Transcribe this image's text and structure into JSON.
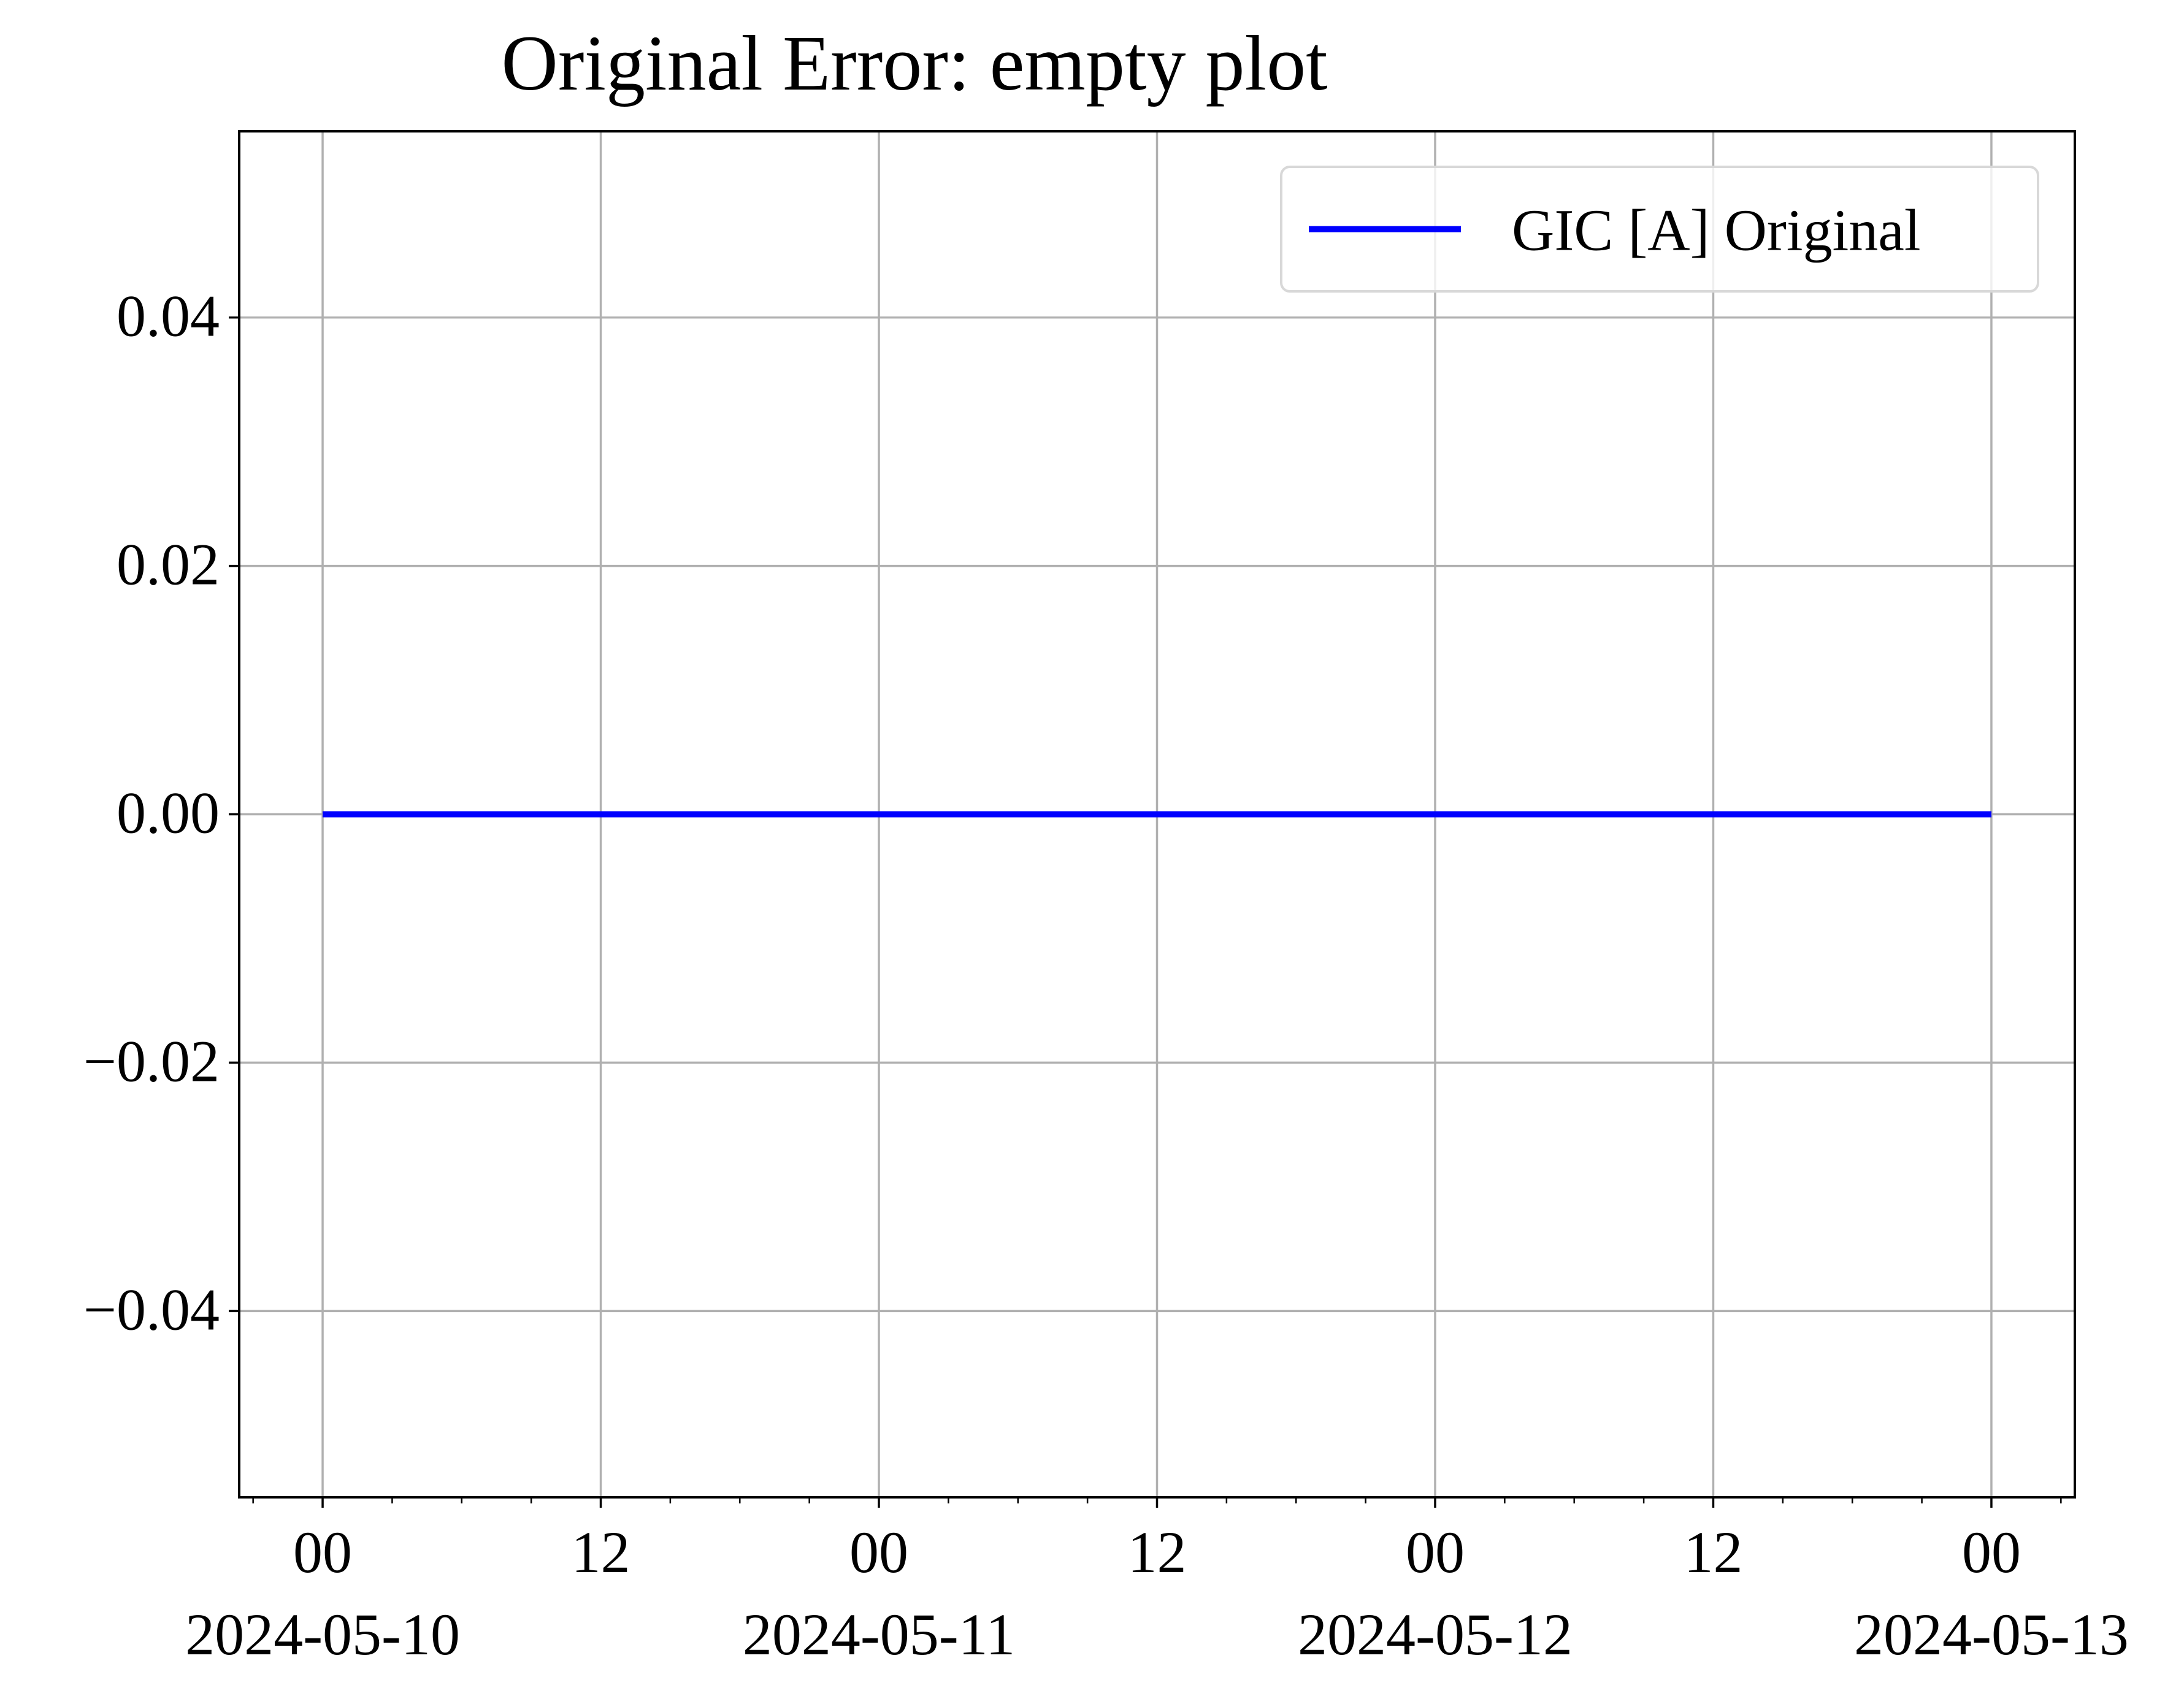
{
  "chart_data": {
    "type": "line",
    "title": "Original Error: empty plot",
    "xlabel": "",
    "ylabel": "",
    "x_range": [
      "2024-05-09T20:24",
      "2024-05-13T03:36"
    ],
    "ylim": [
      -0.055,
      0.055
    ],
    "y_ticks": [
      -0.04,
      -0.02,
      0.0,
      0.02,
      0.04
    ],
    "y_tick_labels": [
      "−0.04",
      "−0.02",
      "0.00",
      "0.02",
      "0.04"
    ],
    "x_ticks": [
      {
        "t": "2024-05-10T00:00",
        "label": "00",
        "sublabel": "2024-05-10"
      },
      {
        "t": "2024-05-10T12:00",
        "label": "12",
        "sublabel": ""
      },
      {
        "t": "2024-05-11T00:00",
        "label": "00",
        "sublabel": "2024-05-11"
      },
      {
        "t": "2024-05-11T12:00",
        "label": "12",
        "sublabel": ""
      },
      {
        "t": "2024-05-12T00:00",
        "label": "00",
        "sublabel": "2024-05-12"
      },
      {
        "t": "2024-05-12T12:00",
        "label": "12",
        "sublabel": ""
      },
      {
        "t": "2024-05-13T00:00",
        "label": "00",
        "sublabel": "2024-05-13"
      }
    ],
    "x_minor_tick_hours": 3,
    "grid": true,
    "legend_position": "top-right",
    "series": [
      {
        "name": "GIC [A] Original",
        "color": "#0000ff",
        "points": [
          {
            "x": "2024-05-10T00:00",
            "y": 0.0
          },
          {
            "x": "2024-05-13T00:00",
            "y": 0.0
          }
        ]
      }
    ]
  }
}
